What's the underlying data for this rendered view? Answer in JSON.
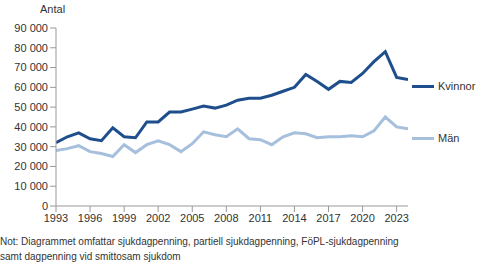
{
  "chart_data": {
    "type": "line",
    "y_label": "Antal",
    "x": [
      1993,
      1994,
      1995,
      1996,
      1997,
      1998,
      1999,
      2000,
      2001,
      2002,
      2003,
      2004,
      2005,
      2006,
      2007,
      2008,
      2009,
      2010,
      2011,
      2012,
      2013,
      2014,
      2015,
      2016,
      2017,
      2018,
      2019,
      2020,
      2021,
      2022,
      2023,
      2024
    ],
    "series": [
      {
        "name": "Kvinnor",
        "color": "#1f4e8c",
        "values": [
          32000,
          35000,
          37000,
          34000,
          33000,
          39500,
          35000,
          34500,
          42500,
          42500,
          47500,
          47500,
          49000,
          50500,
          49500,
          51000,
          53500,
          54500,
          54500,
          56000,
          58000,
          60000,
          66500,
          63000,
          59000,
          63000,
          62500,
          67000,
          73000,
          78000,
          65000,
          64000
        ]
      },
      {
        "name": "Män",
        "color": "#a6bfdc",
        "values": [
          28000,
          29000,
          30500,
          27500,
          26500,
          25000,
          31000,
          27000,
          31000,
          33000,
          31000,
          27500,
          31500,
          37500,
          36000,
          35000,
          39000,
          34000,
          33500,
          31000,
          35000,
          37000,
          36500,
          34500,
          35000,
          35000,
          35500,
          35000,
          38000,
          45000,
          40000,
          39000
        ]
      }
    ],
    "xlim": [
      1993,
      2024
    ],
    "xticks": [
      1993,
      1996,
      1999,
      2002,
      2005,
      2008,
      2011,
      2014,
      2017,
      2020,
      2023
    ],
    "ylim": [
      0,
      90000
    ],
    "yticks": [
      0,
      {
        "value": 10000,
        "label": "10 000"
      },
      {
        "value": 20000,
        "label": "20 000"
      },
      {
        "value": 30000,
        "label": "30 000"
      },
      {
        "value": 40000,
        "label": "40 000"
      },
      {
        "value": 50000,
        "label": "50 000"
      },
      {
        "value": 60000,
        "label": "60 000"
      },
      {
        "value": 70000,
        "label": "70 000"
      },
      {
        "value": 80000,
        "label": "80 000"
      },
      {
        "value": 90000,
        "label": "90 000"
      }
    ],
    "grid": false,
    "legend": "right",
    "note": [
      "Not: Diagrammet omfattar sjukdagpenning, partiell sjukdagpenning, FöPL-sjukdagpenning",
      "samt dagpenning vid smittosam sjukdom"
    ]
  }
}
